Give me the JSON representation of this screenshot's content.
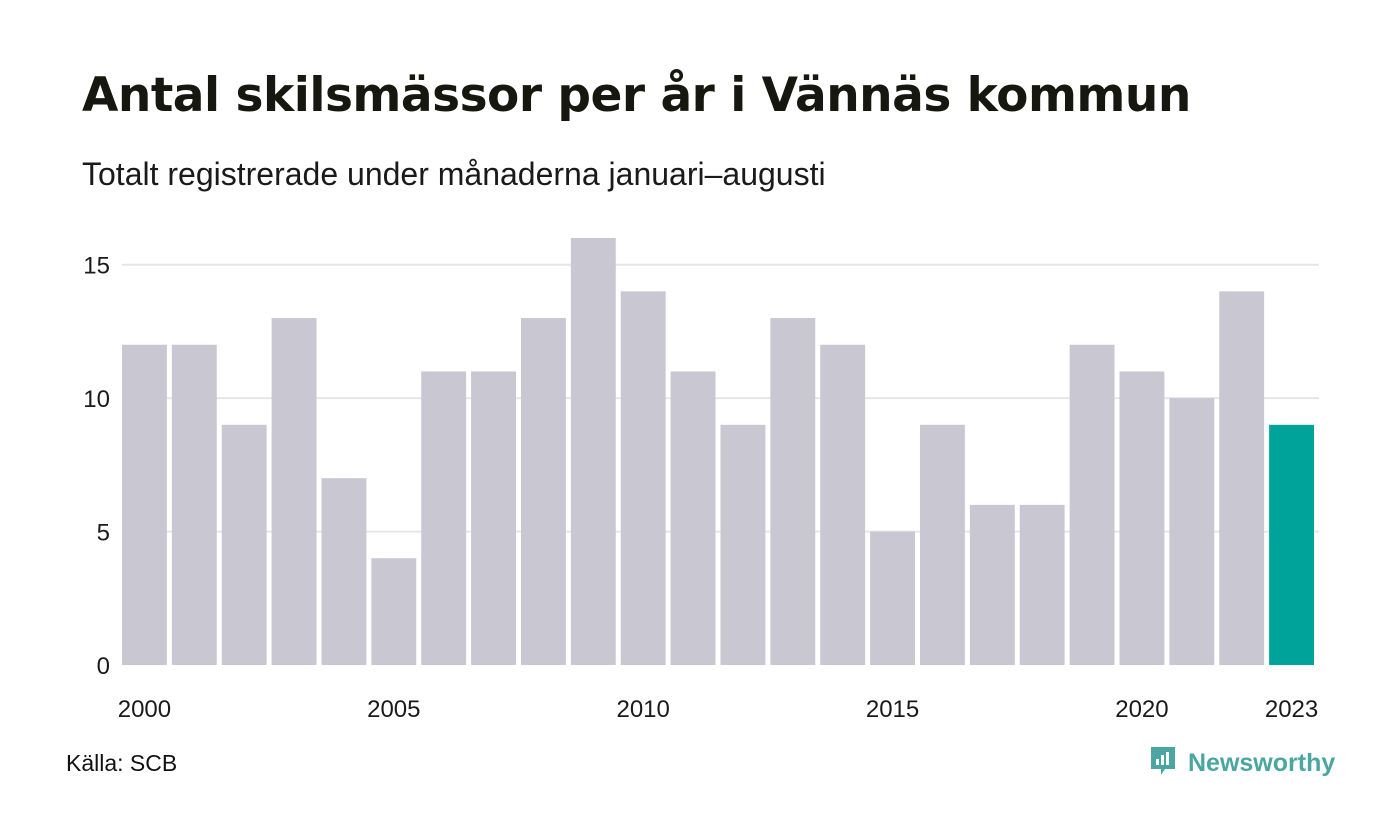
{
  "title": "Antal skilsmässor per år i Vännäs kommun",
  "subtitle": "Totalt registrerade under månaderna januari–augusti",
  "source": "Källa: SCB",
  "brand": {
    "name": "Newsworthy",
    "logo_icon": "newsworthy-logo-icon"
  },
  "colors": {
    "bar": "#c8c7d2",
    "highlight": "#00a399",
    "grid": "#e6e6e6",
    "brand": "#4aa6a1"
  },
  "chart_data": {
    "type": "bar",
    "categories": [
      "2000",
      "2001",
      "2002",
      "2003",
      "2004",
      "2005",
      "2006",
      "2007",
      "2008",
      "2009",
      "2010",
      "2011",
      "2012",
      "2013",
      "2014",
      "2015",
      "2016",
      "2017",
      "2018",
      "2019",
      "2020",
      "2021",
      "2022",
      "2023"
    ],
    "values": [
      12,
      12,
      9,
      13,
      7,
      4,
      11,
      11,
      13,
      16,
      14,
      11,
      9,
      13,
      12,
      5,
      9,
      6,
      6,
      12,
      11,
      10,
      14,
      9
    ],
    "highlight_category": "2023",
    "x_tick_labels": [
      "2000",
      "2005",
      "2010",
      "2015",
      "2020",
      "2023"
    ],
    "y_ticks": [
      0,
      5,
      10,
      15
    ],
    "ylim": [
      0,
      16
    ],
    "grid": true,
    "legend": false,
    "xlabel": "",
    "ylabel": ""
  }
}
